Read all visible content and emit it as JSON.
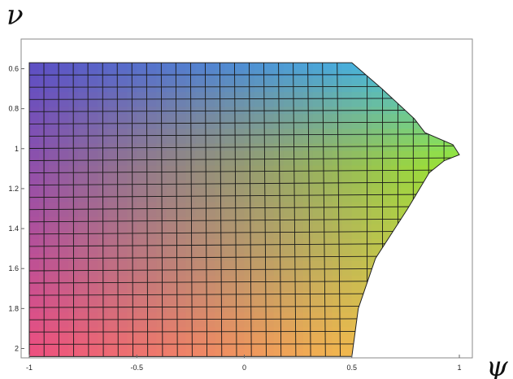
{
  "chart_data": {
    "type": "heatmap",
    "title": "",
    "xlabel": "ψ",
    "ylabel": "ν",
    "xlim": [
      -1,
      1
    ],
    "ylim": [
      0.55,
      2.05
    ],
    "y_axis_inverted": true,
    "x_ticks": [
      {
        "value": -1,
        "label": "-1"
      },
      {
        "value": -0.5,
        "label": "-0.5"
      },
      {
        "value": 0,
        "label": "0"
      },
      {
        "value": 0.5,
        "label": "0.5"
      },
      {
        "value": 1,
        "label": "1"
      }
    ],
    "y_ticks": [
      {
        "value": 0.6,
        "label": "0.6"
      },
      {
        "value": 0.8,
        "label": "0.8"
      },
      {
        "value": 1,
        "label": "1"
      },
      {
        "value": 1.2,
        "label": "1.2"
      },
      {
        "value": 1.4,
        "label": "1.4"
      },
      {
        "value": 1.6,
        "label": "1.6"
      },
      {
        "value": 1.8,
        "label": "1.8"
      },
      {
        "value": 2,
        "label": "2"
      }
    ],
    "grid": true,
    "grid_lines": {
      "columns": 22,
      "rows": 24
    },
    "surface_region": {
      "left_edge_psi": -1,
      "top_edge_nu": 0.57,
      "bottom_edge_nu": 2.04,
      "right_boundary": [
        {
          "nu": 0.57,
          "psi": 0.5
        },
        {
          "nu": 0.7,
          "psi": 0.64
        },
        {
          "nu": 0.85,
          "psi": 0.79
        },
        {
          "nu": 0.92,
          "psi": 0.84
        },
        {
          "nu": 0.98,
          "psi": 0.97
        },
        {
          "nu": 1.03,
          "psi": 1.0
        },
        {
          "nu": 1.06,
          "psi": 0.93
        },
        {
          "nu": 1.12,
          "psi": 0.86
        },
        {
          "nu": 1.3,
          "psi": 0.76
        },
        {
          "nu": 1.55,
          "psi": 0.61
        },
        {
          "nu": 1.8,
          "psi": 0.53
        },
        {
          "nu": 2.04,
          "psi": 0.5
        }
      ]
    },
    "color_corners": {
      "top_left": "#5c4fc4",
      "top_right": "#3fcfe8",
      "bottom_left": "#ee4f7f",
      "bottom_right": "#f4dc3c",
      "right_middle": "#9be830"
    }
  }
}
